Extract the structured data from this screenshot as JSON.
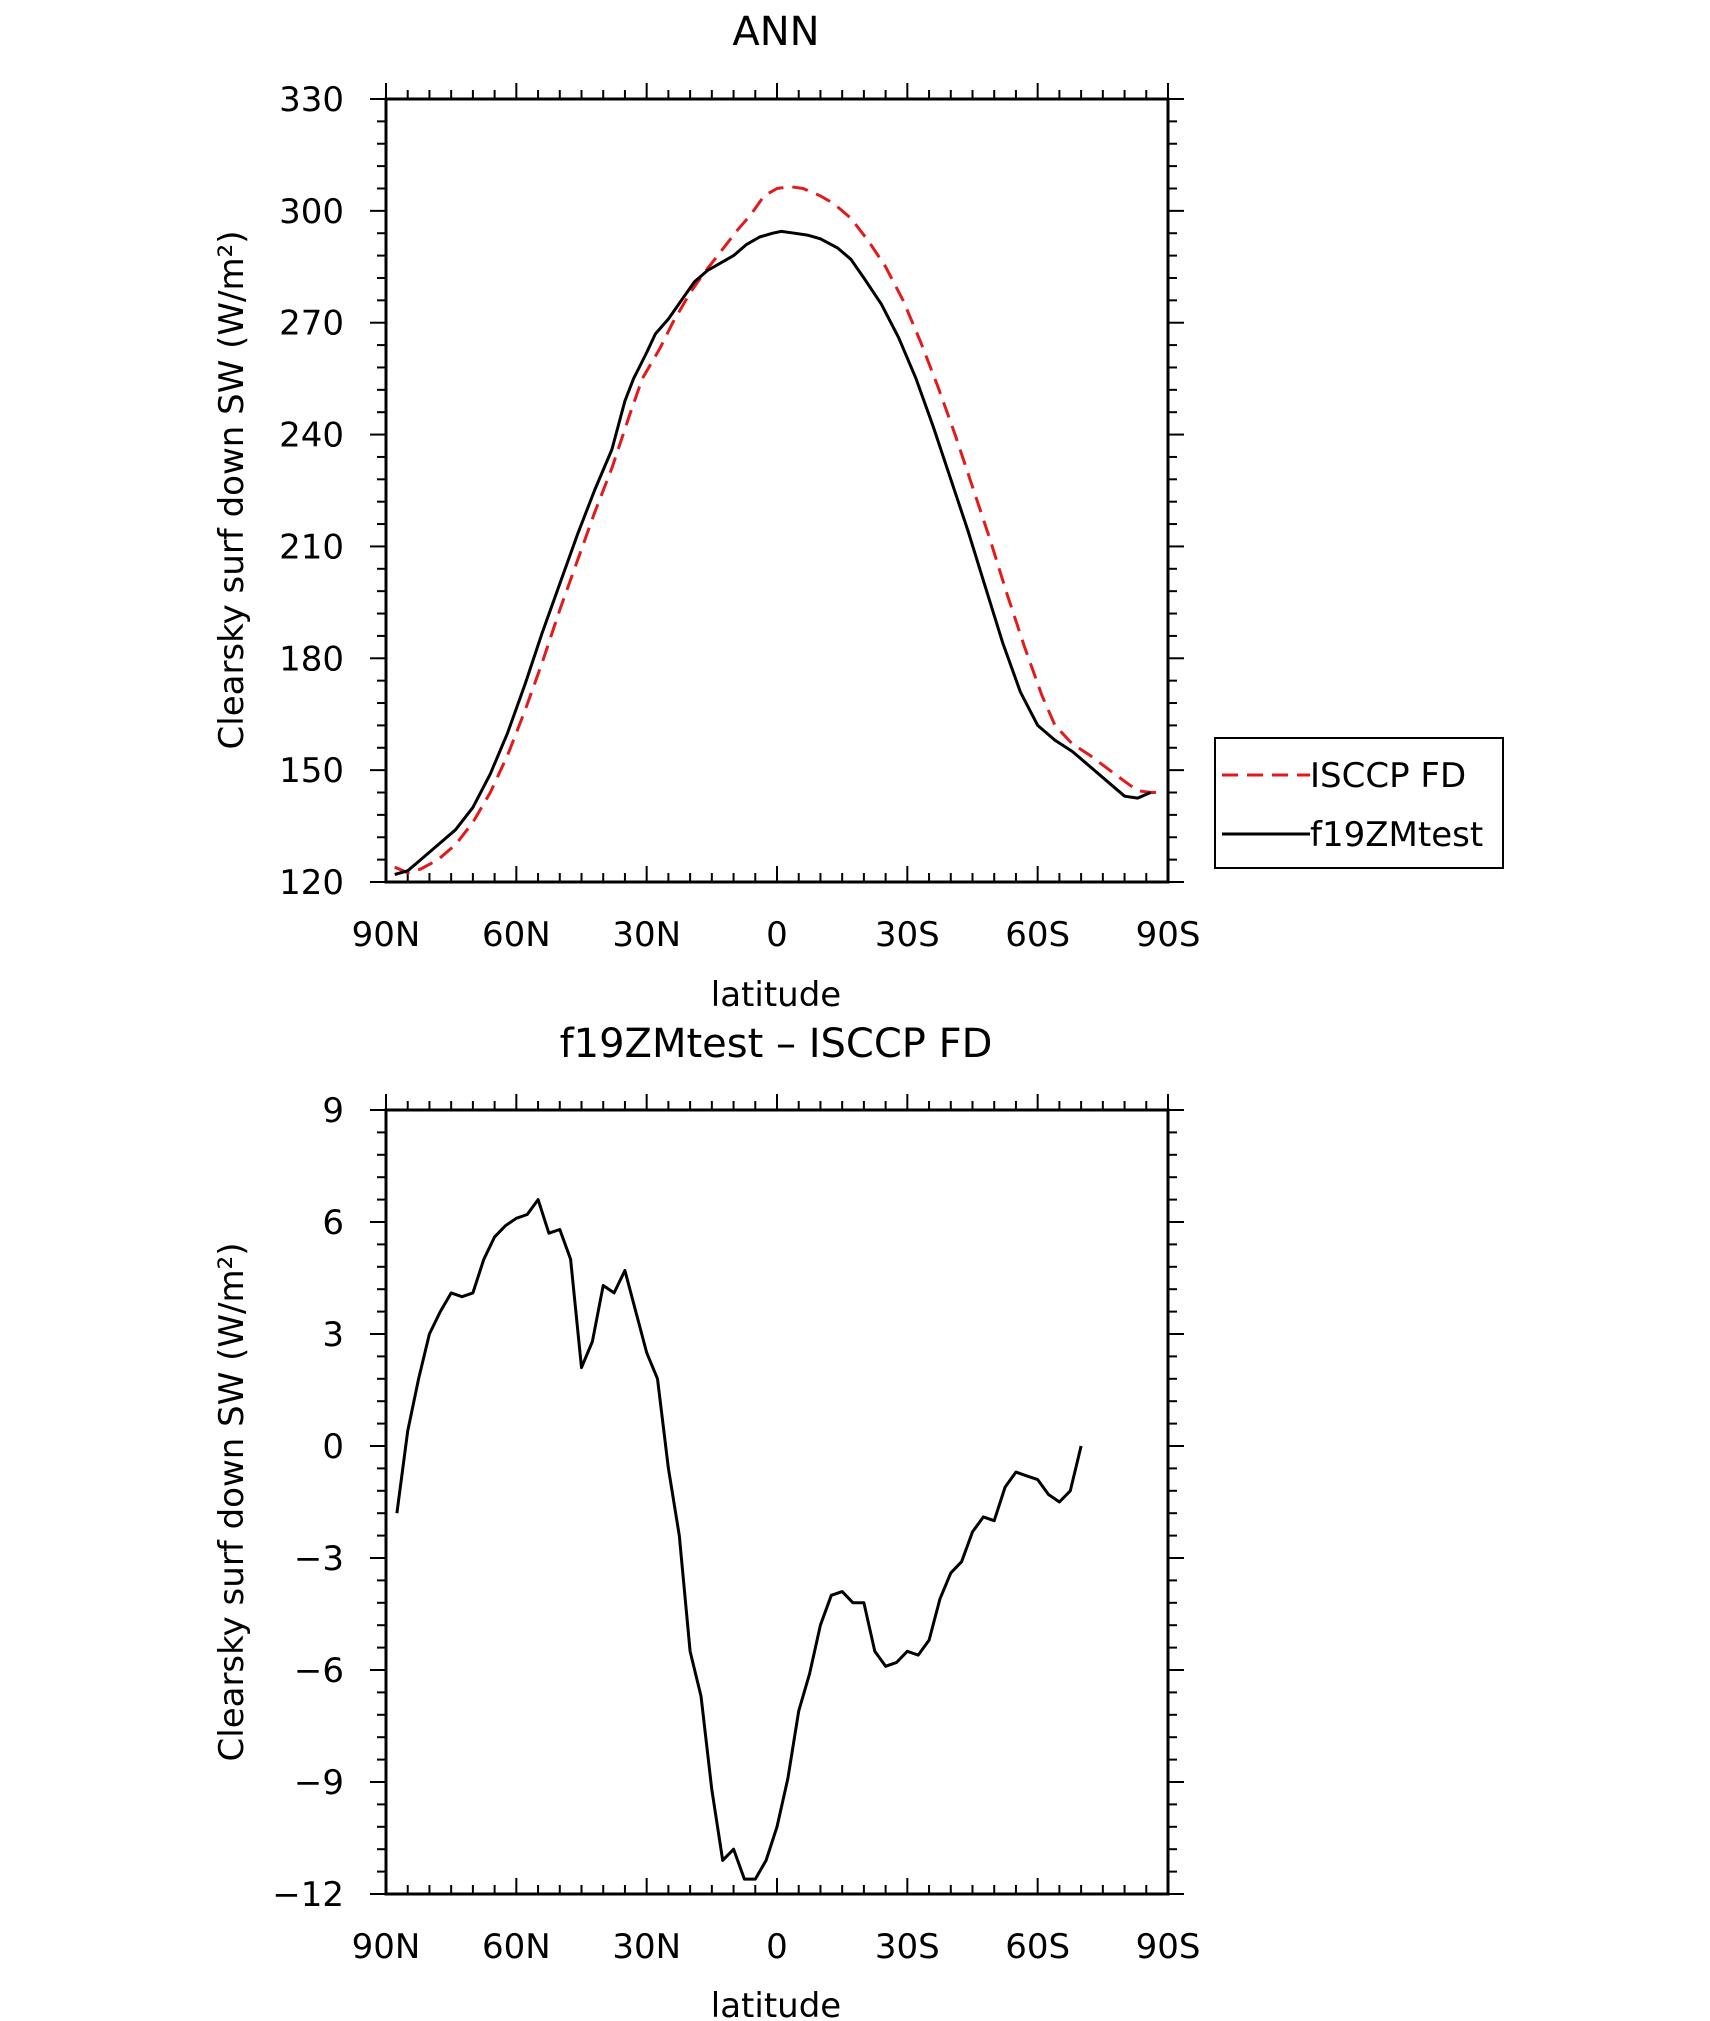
{
  "chart_data": [
    {
      "type": "line",
      "title": "ANN",
      "xlabel": "latitude",
      "ylabel": "Clearsky surf down SW (W/m²)",
      "xlim": [
        90,
        -90
      ],
      "ylim": [
        120,
        330
      ],
      "xticks": [
        {
          "value": 90,
          "label": "90N"
        },
        {
          "value": 60,
          "label": "60N"
        },
        {
          "value": 30,
          "label": "30N"
        },
        {
          "value": 0,
          "label": "0"
        },
        {
          "value": -30,
          "label": "30S"
        },
        {
          "value": -60,
          "label": "60S"
        },
        {
          "value": -90,
          "label": "90S"
        }
      ],
      "yticks": [
        {
          "value": 120,
          "label": "120"
        },
        {
          "value": 150,
          "label": "150"
        },
        {
          "value": 180,
          "label": "180"
        },
        {
          "value": 210,
          "label": "210"
        },
        {
          "value": 240,
          "label": "240"
        },
        {
          "value": 270,
          "label": "270"
        },
        {
          "value": 300,
          "label": "300"
        },
        {
          "value": 330,
          "label": "330"
        }
      ],
      "legend": {
        "position": "right"
      },
      "series": [
        {
          "name": "ISCCP FD",
          "color": "#e31a1c",
          "dash": true,
          "points": [
            [
              88,
              124
            ],
            [
              85,
              122.5
            ],
            [
              82,
              123.5
            ],
            [
              78,
              126
            ],
            [
              74,
              130
            ],
            [
              70,
              136
            ],
            [
              66,
              144
            ],
            [
              62,
              154
            ],
            [
              58,
              166
            ],
            [
              54,
              179
            ],
            [
              50,
              193
            ],
            [
              46,
              206
            ],
            [
              42,
              219
            ],
            [
              38,
              231
            ],
            [
              34,
              245
            ],
            [
              31,
              255
            ],
            [
              27,
              263
            ],
            [
              24,
              270
            ],
            [
              20,
              278
            ],
            [
              17,
              283
            ],
            [
              13,
              289
            ],
            [
              9,
              295
            ],
            [
              6,
              299
            ],
            [
              3,
              304
            ],
            [
              0,
              306
            ],
            [
              -3,
              306.5
            ],
            [
              -6,
              306
            ],
            [
              -10,
              304
            ],
            [
              -13,
              302
            ],
            [
              -17,
              298
            ],
            [
              -21,
              292
            ],
            [
              -25,
              285
            ],
            [
              -29,
              276
            ],
            [
              -33,
              265
            ],
            [
              -37,
              253
            ],
            [
              -41,
              240
            ],
            [
              -45,
              226
            ],
            [
              -49,
              212
            ],
            [
              -53,
              197
            ],
            [
              -57,
              183
            ],
            [
              -61,
              170
            ],
            [
              -64,
              162
            ],
            [
              -68,
              157
            ],
            [
              -72,
              154
            ],
            [
              -76,
              150.5
            ],
            [
              -80,
              147
            ],
            [
              -83,
              144.5
            ],
            [
              -86,
              144
            ],
            [
              -88,
              144
            ]
          ]
        },
        {
          "name": "f19ZMtest",
          "color": "#000000",
          "dash": false,
          "points": [
            [
              88,
              122
            ],
            [
              85,
              123
            ],
            [
              82,
              126
            ],
            [
              78,
              130
            ],
            [
              74,
              134
            ],
            [
              70,
              140
            ],
            [
              66,
              149
            ],
            [
              62,
              160
            ],
            [
              58,
              173
            ],
            [
              54,
              187
            ],
            [
              50,
              200
            ],
            [
              46,
              213
            ],
            [
              42,
              225
            ],
            [
              38,
              236
            ],
            [
              35,
              249
            ],
            [
              33,
              255
            ],
            [
              30,
              262
            ],
            [
              28,
              267
            ],
            [
              25,
              271
            ],
            [
              22,
              276
            ],
            [
              19,
              281
            ],
            [
              16,
              284
            ],
            [
              13,
              286
            ],
            [
              10,
              288
            ],
            [
              7,
              291
            ],
            [
              4,
              293
            ],
            [
              1,
              294
            ],
            [
              -1,
              294.5
            ],
            [
              -4,
              294
            ],
            [
              -7,
              293.5
            ],
            [
              -10,
              292.5
            ],
            [
              -14,
              290
            ],
            [
              -17,
              287
            ],
            [
              -20,
              282
            ],
            [
              -24,
              275
            ],
            [
              -28,
              266
            ],
            [
              -32,
              255
            ],
            [
              -36,
              242
            ],
            [
              -40,
              228
            ],
            [
              -44,
              214
            ],
            [
              -48,
              199
            ],
            [
              -52,
              184
            ],
            [
              -56,
              171
            ],
            [
              -60,
              162
            ],
            [
              -64,
              158
            ],
            [
              -68,
              155
            ],
            [
              -72,
              151
            ],
            [
              -76,
              147
            ],
            [
              -80,
              143
            ],
            [
              -83,
              142.5
            ],
            [
              -86,
              144
            ]
          ]
        }
      ]
    },
    {
      "type": "line",
      "title": "f19ZMtest – ISCCP FD",
      "xlabel": "latitude",
      "ylabel": "Clearsky surf down SW (W/m²)",
      "xlim": [
        90,
        -90
      ],
      "ylim": [
        -12,
        9
      ],
      "xticks": [
        {
          "value": 90,
          "label": "90N"
        },
        {
          "value": 60,
          "label": "60N"
        },
        {
          "value": 30,
          "label": "30N"
        },
        {
          "value": 0,
          "label": "0"
        },
        {
          "value": -30,
          "label": "30S"
        },
        {
          "value": -60,
          "label": "60S"
        },
        {
          "value": -90,
          "label": "90S"
        }
      ],
      "yticks": [
        {
          "value": -12,
          "label": "−12"
        },
        {
          "value": -9,
          "label": "−9"
        },
        {
          "value": -6,
          "label": "−6"
        },
        {
          "value": -3,
          "label": "−3"
        },
        {
          "value": 0,
          "label": "0"
        },
        {
          "value": 3,
          "label": "3"
        },
        {
          "value": 6,
          "label": "6"
        },
        {
          "value": 9,
          "label": "9"
        }
      ],
      "series": [
        {
          "color": "#000000",
          "dash": false,
          "points": [
            [
              87.5,
              -1.8
            ],
            [
              85,
              0.4
            ],
            [
              82.5,
              1.8
            ],
            [
              80,
              3.0
            ],
            [
              77.5,
              3.6
            ],
            [
              75,
              4.1
            ],
            [
              72.5,
              4.0
            ],
            [
              70,
              4.1
            ],
            [
              67.5,
              5.0
            ],
            [
              65,
              5.6
            ],
            [
              62.5,
              5.9
            ],
            [
              60,
              6.1
            ],
            [
              57.5,
              6.2
            ],
            [
              55,
              6.6
            ],
            [
              52.5,
              5.7
            ],
            [
              50,
              5.8
            ],
            [
              47.5,
              5.0
            ],
            [
              45,
              2.1
            ],
            [
              42.5,
              2.8
            ],
            [
              40,
              4.3
            ],
            [
              37.5,
              4.1
            ],
            [
              35,
              4.7
            ],
            [
              32.5,
              3.6
            ],
            [
              30,
              2.5
            ],
            [
              27.5,
              1.8
            ],
            [
              25,
              -0.6
            ],
            [
              22.5,
              -2.4
            ],
            [
              20,
              -5.5
            ],
            [
              17.5,
              -6.7
            ],
            [
              15,
              -9.2
            ],
            [
              12.5,
              -11.1
            ],
            [
              10,
              -10.8
            ],
            [
              7.5,
              -11.6
            ],
            [
              5,
              -11.6
            ],
            [
              2.5,
              -11.1
            ],
            [
              0,
              -10.2
            ],
            [
              -2.5,
              -8.9
            ],
            [
              -5,
              -7.1
            ],
            [
              -7.5,
              -6.1
            ],
            [
              -10,
              -4.8
            ],
            [
              -12.5,
              -4.0
            ],
            [
              -15,
              -3.9
            ],
            [
              -17.5,
              -4.2
            ],
            [
              -20,
              -4.2
            ],
            [
              -22.5,
              -5.5
            ],
            [
              -25,
              -5.9
            ],
            [
              -27.5,
              -5.8
            ],
            [
              -30,
              -5.5
            ],
            [
              -32.5,
              -5.6
            ],
            [
              -35,
              -5.2
            ],
            [
              -37.5,
              -4.1
            ],
            [
              -40,
              -3.4
            ],
            [
              -42.5,
              -3.1
            ],
            [
              -45,
              -2.3
            ],
            [
              -47.5,
              -1.9
            ],
            [
              -50,
              -2.0
            ],
            [
              -52.5,
              -1.1
            ],
            [
              -55,
              -0.7
            ],
            [
              -57.5,
              -0.8
            ],
            [
              -60,
              -0.9
            ],
            [
              -62.5,
              -1.3
            ],
            [
              -65,
              -1.5
            ],
            [
              -67.5,
              -1.2
            ],
            [
              -70,
              0.0
            ]
          ]
        }
      ]
    }
  ]
}
